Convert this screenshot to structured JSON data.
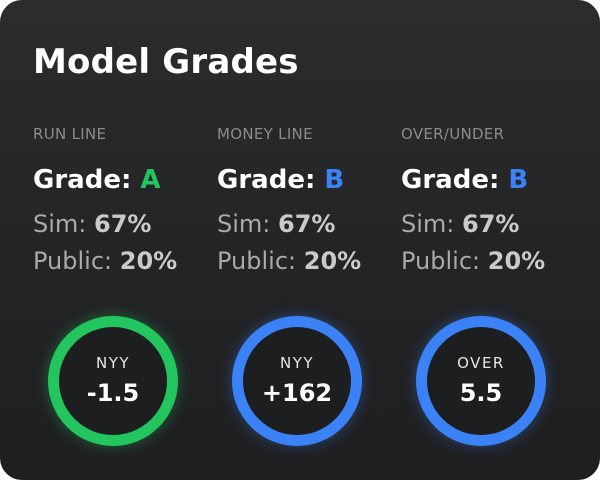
{
  "card": {
    "title": "Model Grades"
  },
  "colors": {
    "green": "#22c55e",
    "blue": "#3b82f6"
  },
  "markets": [
    {
      "name": "RUN LINE",
      "grade_label": "Grade:",
      "grade": "A",
      "grade_color": "#22c55e",
      "sim_label": "Sim:",
      "sim": "67%",
      "public_label": "Public:",
      "public": "20%",
      "pick_team": "NYY",
      "pick_value": "-1.5",
      "ring_color": "#22c55e"
    },
    {
      "name": "MONEY LINE",
      "grade_label": "Grade:",
      "grade": "B",
      "grade_color": "#3b82f6",
      "sim_label": "Sim:",
      "sim": "67%",
      "public_label": "Public:",
      "public": "20%",
      "pick_team": "NYY",
      "pick_value": "+162",
      "ring_color": "#3b82f6"
    },
    {
      "name": "OVER/UNDER",
      "grade_label": "Grade:",
      "grade": "B",
      "grade_color": "#3b82f6",
      "sim_label": "Sim:",
      "sim": "67%",
      "public_label": "Public:",
      "public": "20%",
      "pick_team": "OVER",
      "pick_value": "5.5",
      "ring_color": "#3b82f6"
    }
  ]
}
